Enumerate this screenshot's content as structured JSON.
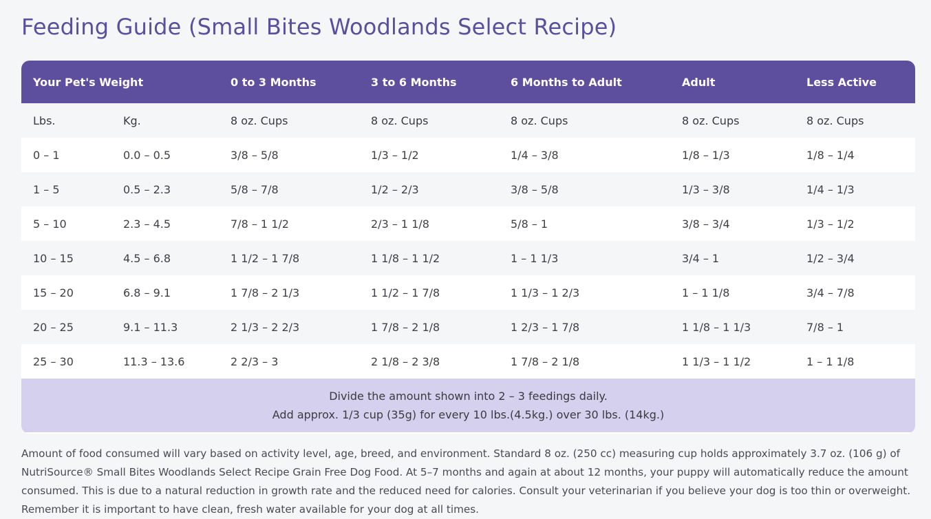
{
  "title": "Feeding Guide (Small Bites Woodlands Select Recipe)",
  "table": {
    "header": {
      "weight": "Your Pet's Weight",
      "col1": "0 to 3 Months",
      "col2": "3 to 6 Months",
      "col3": "6 Months to Adult",
      "col4": "Adult",
      "col5": "Less Active"
    },
    "units": [
      "Lbs.",
      "Kg.",
      "8 oz. Cups",
      "8 oz. Cups",
      "8 oz. Cups",
      "8 oz. Cups",
      "8 oz. Cups"
    ],
    "rows": [
      [
        "0 – 1",
        "0.0 – 0.5",
        "3/8 – 5/8",
        "1/3 – 1/2",
        "1/4 – 3/8",
        "1/8 – 1/3",
        "1/8 – 1/4"
      ],
      [
        "1 – 5",
        "0.5 – 2.3",
        "5/8 – 7/8",
        "1/2 – 2/3",
        "3/8 – 5/8",
        "1/3 – 3/8",
        "1/4 – 1/3"
      ],
      [
        "5 – 10",
        "2.3 – 4.5",
        "7/8 – 1 1/2",
        "2/3 – 1 1/8",
        "5/8 – 1",
        "3/8 – 3/4",
        "1/3 – 1/2"
      ],
      [
        "10 – 15",
        "4.5 – 6.8",
        "1 1/2 – 1 7/8",
        "1 1/8 – 1 1/2",
        "1 – 1 1/3",
        "3/4 – 1",
        "1/2 – 3/4"
      ],
      [
        "15 – 20",
        "6.8 – 9.1",
        "1 7/8 – 2 1/3",
        "1 1/2 – 1 7/8",
        "1 1/3 – 1 2/3",
        "1 – 1 1/8",
        "3/4 – 7/8"
      ],
      [
        "20 – 25",
        "9.1 – 11.3",
        "2 1/3 – 2 2/3",
        "1 7/8 – 2 1/8",
        "1 2/3 – 1 7/8",
        "1 1/8 – 1 1/3",
        "7/8 – 1"
      ],
      [
        "25 – 30",
        "11.3 – 13.6",
        "2 2/3 – 3",
        "2 1/8 – 2 3/8",
        "1 7/8 – 2 1/8",
        "1 1/3 – 1 1/2",
        "1 – 1 1/8"
      ]
    ],
    "footer": {
      "line1": "Divide the amount shown into 2 – 3 feedings daily.",
      "line2": "Add approx. 1/3 cup (35g) for every 10 lbs.(4.5kg.) over 30 lbs. (14kg.)"
    }
  },
  "note": "Amount of food consumed will vary based on activity level, age, breed, and environment. Standard 8 oz. (250 cc) measuring cup holds approximately 3.7 oz. (106 g) of NutriSource® Small Bites Woodlands Select Recipe Grain Free Dog Food. At 5–7 months and again at about 12 months, your puppy will automatically reduce the amount consumed. This is due to a natural reduction in growth rate and the reduced need for calories. Consult your veterinarian if you believe your dog is too thin or overweight. Remember it is important to have clean, fresh water available for your dog at all times.",
  "colors": {
    "title": "#5b4f9d",
    "header_bg": "#5e4f9e",
    "footer_bg": "#d5d0ee",
    "stripe": "#f5f6f8"
  }
}
